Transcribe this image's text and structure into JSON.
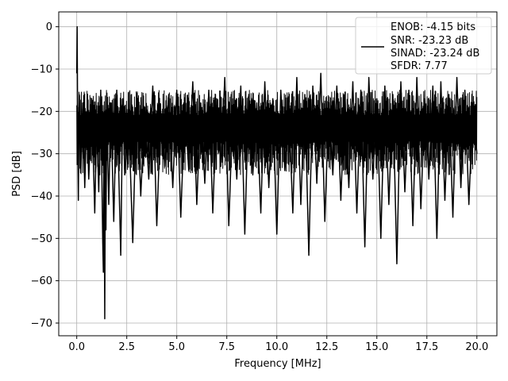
{
  "chart_data": {
    "type": "line",
    "title": "",
    "xlabel": "Frequency [MHz]",
    "ylabel": "PSD [dB]",
    "xlim": [
      -0.9,
      21.0
    ],
    "ylim": [
      -73,
      3.5
    ],
    "xticks": [
      0.0,
      2.5,
      5.0,
      7.5,
      10.0,
      12.5,
      15.0,
      17.5,
      20.0
    ],
    "xtick_labels": [
      "0.0",
      "2.5",
      "5.0",
      "7.5",
      "10.0",
      "12.5",
      "15.0",
      "17.5",
      "20.0"
    ],
    "yticks": [
      0,
      -10,
      -20,
      -30,
      -40,
      -50,
      -60,
      -70
    ],
    "ytick_labels": [
      "0",
      "−10",
      "−20",
      "−30",
      "−40",
      "−50",
      "−60",
      "−70"
    ],
    "grid": true,
    "legend_position": "top-right",
    "legend_lines": [
      "ENOB: -4.15 bits",
      "SNR: -23.23 dB",
      "SINAD: -23.24 dB",
      "SFDR: 7.77"
    ],
    "series": [
      {
        "color": "#000000",
        "approx_noise_floor": [
          -35,
          -15
        ],
        "x": [
          0.0,
          0.02,
          0.05,
          0.08,
          0.12,
          0.2,
          0.3,
          0.4,
          0.5,
          0.6,
          0.75,
          0.9,
          1.0,
          1.1,
          1.2,
          1.3,
          1.33,
          1.36,
          1.4,
          1.43,
          1.46,
          1.5,
          1.6,
          1.7,
          1.85,
          2.0,
          2.2,
          2.3,
          2.4,
          2.6,
          2.8,
          3.0,
          3.2,
          3.4,
          3.6,
          3.8,
          4.0,
          4.2,
          4.4,
          4.6,
          4.8,
          5.0,
          5.2,
          5.4,
          5.6,
          5.8,
          6.0,
          6.2,
          6.4,
          6.6,
          6.8,
          7.0,
          7.2,
          7.4,
          7.6,
          7.8,
          8.0,
          8.2,
          8.4,
          8.6,
          8.8,
          9.0,
          9.2,
          9.4,
          9.6,
          9.8,
          10.0,
          10.2,
          10.4,
          10.6,
          10.8,
          11.0,
          11.2,
          11.4,
          11.6,
          11.8,
          12.0,
          12.2,
          12.4,
          12.6,
          12.8,
          13.0,
          13.2,
          13.4,
          13.6,
          13.8,
          14.0,
          14.2,
          14.4,
          14.6,
          14.8,
          15.0,
          15.2,
          15.4,
          15.6,
          15.8,
          16.0,
          16.2,
          16.4,
          16.6,
          16.8,
          17.0,
          17.2,
          17.4,
          17.6,
          17.8,
          18.0,
          18.2,
          18.4,
          18.6,
          18.8,
          19.0,
          19.2,
          19.4,
          19.6,
          19.8,
          20.0
        ],
        "y": [
          -11,
          0,
          -28,
          -41,
          -16,
          -34,
          -18,
          -38,
          -20,
          -36,
          -17,
          -44,
          -22,
          -39,
          -15,
          -51,
          -58,
          -25,
          -69,
          -30,
          -48,
          -20,
          -42,
          -18,
          -46,
          -15,
          -54,
          -17,
          -35,
          -22,
          -51,
          -16,
          -40,
          -19,
          -36,
          -14,
          -47,
          -20,
          -33,
          -16,
          -38,
          -15,
          -45,
          -19,
          -34,
          -13,
          -42,
          -18,
          -37,
          -15,
          -44,
          -17,
          -33,
          -12,
          -47,
          -19,
          -36,
          -14,
          -49,
          -16,
          -35,
          -18,
          -44,
          -13,
          -38,
          -17,
          -49,
          -15,
          -34,
          -19,
          -44,
          -12,
          -42,
          -16,
          -54,
          -14,
          -37,
          -11,
          -46,
          -18,
          -35,
          -14,
          -41,
          -16,
          -38,
          -13,
          -44,
          -15,
          -52,
          -12,
          -36,
          -17,
          -50,
          -14,
          -42,
          -16,
          -56,
          -13,
          -39,
          -15,
          -47,
          -12,
          -43,
          -17,
          -36,
          -14,
          -50,
          -13,
          -41,
          -16,
          -45,
          -12,
          -38,
          -15,
          -42,
          -18,
          -30
        ]
      }
    ]
  }
}
